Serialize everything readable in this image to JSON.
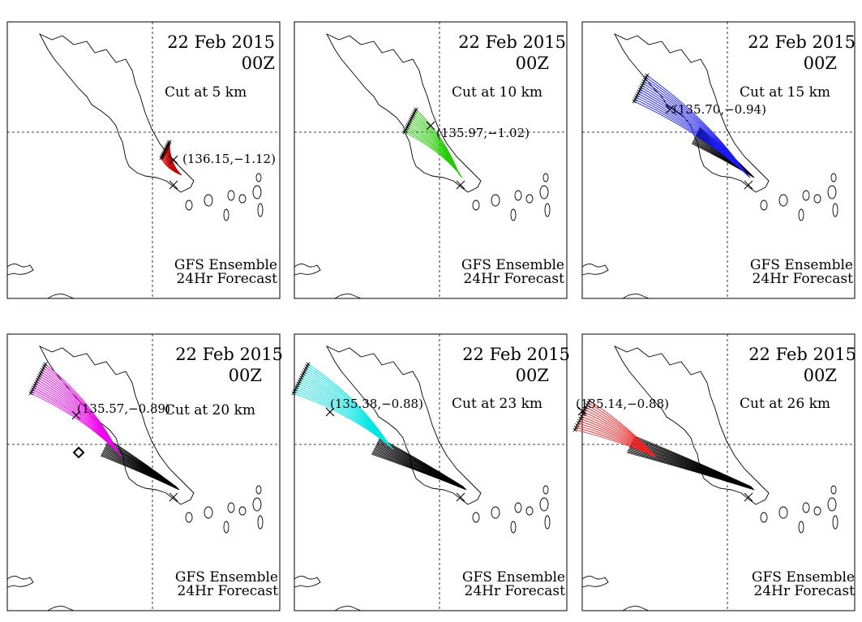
{
  "panels": [
    {
      "date": "22 Feb 2015",
      "time": "00Z",
      "cut_label": "Cut at  5 km",
      "centroid_label": "(136.15,−1.12)",
      "model_label": "GFS Ensemble",
      "forecast_label": "24Hr Forecast",
      "cut_color": "#cc0000",
      "cut_km": 5
    },
    {
      "date": "22 Feb 2015",
      "time": "00Z",
      "cut_label": "Cut at 10 km",
      "centroid_label": "(135.97,−1.02)",
      "model_label": "GFS Ensemble",
      "forecast_label": "24Hr Forecast",
      "cut_color": "#22cc00",
      "cut_km": 10
    },
    {
      "date": "22 Feb 2015",
      "time": "00Z",
      "cut_label": "Cut at 15 km",
      "centroid_label": "(135.70,−0.94)",
      "model_label": "GFS Ensemble",
      "forecast_label": "24Hr Forecast",
      "cut_color": "#1a1aff",
      "cut_km": 15
    },
    {
      "date": "22 Feb 2015",
      "time": "00Z",
      "cut_label": "Cut at 20 km",
      "centroid_label": "(135.57,−0.89)",
      "model_label": "GFS Ensemble",
      "forecast_label": "24Hr Forecast",
      "cut_color": "#ee00ee",
      "cut_km": 20
    },
    {
      "date": "22 Feb 2015",
      "time": "00Z",
      "cut_label": "Cut at 23 km",
      "centroid_label": "(135.38,−0.88)",
      "model_label": "GFS Ensemble",
      "forecast_label": "24Hr Forecast",
      "cut_color": "#00e5e5",
      "cut_km": 23
    },
    {
      "date": "22 Feb 2015",
      "time": "00Z",
      "cut_label": "Cut at 26 km",
      "centroid_label": "(135.14,−0.88)",
      "model_label": "GFS Ensemble",
      "forecast_label": "24Hr Forecast",
      "cut_color": "#ee2222",
      "cut_km": 26
    }
  ],
  "colors": {
    "frame": "#000000",
    "coastline": "#000000",
    "below_cut_track": "#000000",
    "background": "#ffffff"
  }
}
